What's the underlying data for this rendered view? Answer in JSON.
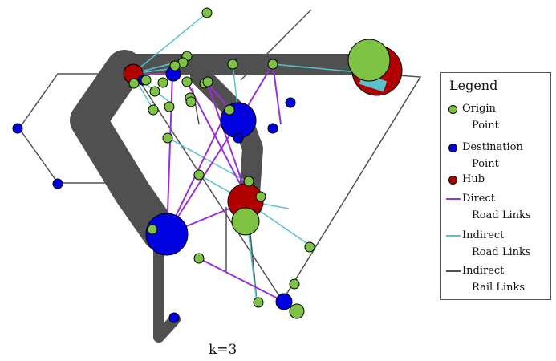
{
  "caption": "k=3",
  "legend": {
    "title": "Legend",
    "items": [
      {
        "line1": "Origin",
        "line2": "Point",
        "symbol": "dot",
        "color": "#7dc242"
      },
      {
        "line1": "Destination",
        "line2": "Point",
        "symbol": "dot",
        "color": "#0000e0"
      },
      {
        "line1": "Hub",
        "line2": "",
        "symbol": "dot",
        "color": "#b00000"
      },
      {
        "line1": "Direct",
        "line2": "Road Links",
        "symbol": "line",
        "color": "#9b30d9"
      },
      {
        "line1": "Indirect",
        "line2": "Road Links",
        "symbol": "line",
        "color": "#56c2cc"
      },
      {
        "line1": "Indirect",
        "line2": "Rail Links",
        "symbol": "line",
        "color": "#505050"
      }
    ]
  },
  "colors": {
    "origin": "#7dc242",
    "destination": "#0000e0",
    "hub": "#b00000",
    "direct_road": "#9b30d9",
    "indirect_road": "#56c2cc",
    "rail": "#505050"
  }
}
